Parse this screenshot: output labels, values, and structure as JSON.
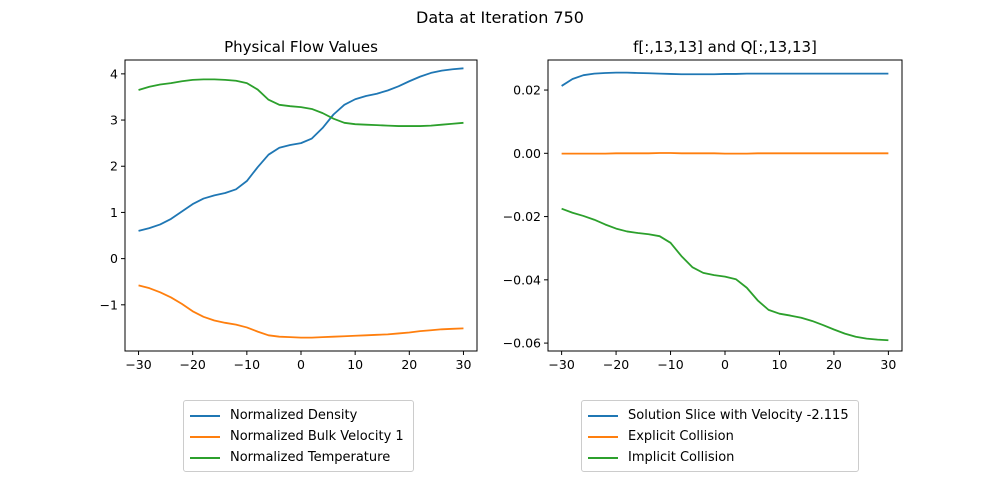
{
  "suptitle": "Data at Iteration 750",
  "colors": {
    "c0": "#1f77b4",
    "c1": "#ff7f0e",
    "c2": "#2ca02c"
  },
  "chart_data": [
    {
      "type": "line",
      "title": "Physical Flow Values",
      "xlabel": "",
      "ylabel": "",
      "xlim": [
        -32.5,
        32.5
      ],
      "ylim": [
        -2.0,
        4.3
      ],
      "xticks": [
        -30,
        -20,
        -10,
        0,
        10,
        20,
        30
      ],
      "yticks": [
        -1,
        0,
        1,
        2,
        3,
        4
      ],
      "ytick_labels": [
        "−1",
        "0",
        "1",
        "2",
        "3",
        "4"
      ],
      "xtick_labels": [
        "−30",
        "−20",
        "−10",
        "0",
        "10",
        "20",
        "30"
      ],
      "x": [
        -30,
        -28,
        -26,
        -24,
        -22,
        -20,
        -18,
        -16,
        -14,
        -12,
        -10,
        -8,
        -6,
        -4,
        -2,
        0,
        2,
        4,
        6,
        8,
        10,
        12,
        14,
        16,
        18,
        20,
        22,
        24,
        26,
        28,
        30
      ],
      "series": [
        {
          "name": "Normalized Density",
          "color": "#1f77b4",
          "values": [
            0.6,
            0.66,
            0.74,
            0.86,
            1.02,
            1.18,
            1.3,
            1.37,
            1.42,
            1.5,
            1.68,
            1.98,
            2.25,
            2.4,
            2.46,
            2.5,
            2.6,
            2.83,
            3.12,
            3.33,
            3.45,
            3.52,
            3.57,
            3.64,
            3.73,
            3.84,
            3.94,
            4.02,
            4.07,
            4.1,
            4.12
          ]
        },
        {
          "name": "Normalized Bulk Velocity 1",
          "color": "#ff7f0e",
          "values": [
            -0.58,
            -0.64,
            -0.73,
            -0.84,
            -0.98,
            -1.14,
            -1.26,
            -1.34,
            -1.39,
            -1.43,
            -1.49,
            -1.58,
            -1.66,
            -1.69,
            -1.7,
            -1.71,
            -1.71,
            -1.7,
            -1.69,
            -1.68,
            -1.67,
            -1.66,
            -1.65,
            -1.64,
            -1.62,
            -1.6,
            -1.57,
            -1.55,
            -1.53,
            -1.52,
            -1.51
          ]
        },
        {
          "name": "Normalized Temperature",
          "color": "#2ca02c",
          "values": [
            3.65,
            3.72,
            3.77,
            3.8,
            3.84,
            3.87,
            3.88,
            3.88,
            3.87,
            3.85,
            3.8,
            3.66,
            3.44,
            3.33,
            3.3,
            3.28,
            3.24,
            3.15,
            3.03,
            2.94,
            2.91,
            2.9,
            2.89,
            2.88,
            2.87,
            2.87,
            2.87,
            2.88,
            2.9,
            2.92,
            2.94
          ]
        }
      ],
      "legend": "below"
    },
    {
      "type": "line",
      "title": "f[:,13,13] and Q[:,13,13]",
      "xlabel": "",
      "ylabel": "",
      "xlim": [
        -32.5,
        32.5
      ],
      "ylim": [
        -0.0625,
        0.0295
      ],
      "xticks": [
        -30,
        -20,
        -10,
        0,
        10,
        20,
        30
      ],
      "yticks": [
        -0.06,
        -0.04,
        -0.02,
        0.0,
        0.02
      ],
      "ytick_labels": [
        "−0.06",
        "−0.04",
        "−0.02",
        "0.00",
        "0.02"
      ],
      "xtick_labels": [
        "−30",
        "−20",
        "−10",
        "0",
        "10",
        "20",
        "30"
      ],
      "x": [
        -30,
        -28,
        -26,
        -24,
        -22,
        -20,
        -18,
        -16,
        -14,
        -12,
        -10,
        -8,
        -6,
        -4,
        -2,
        0,
        2,
        4,
        6,
        8,
        10,
        12,
        14,
        16,
        18,
        20,
        22,
        24,
        26,
        28,
        30
      ],
      "series": [
        {
          "name": "Solution Slice with Velocity -2.115",
          "color": "#1f77b4",
          "values": [
            0.0213,
            0.0235,
            0.0247,
            0.0252,
            0.0254,
            0.0255,
            0.0255,
            0.0254,
            0.0253,
            0.0252,
            0.0251,
            0.025,
            0.025,
            0.025,
            0.025,
            0.0251,
            0.0251,
            0.0252,
            0.0252,
            0.0252,
            0.0252,
            0.0252,
            0.0252,
            0.0252,
            0.0252,
            0.0252,
            0.0252,
            0.0252,
            0.0252,
            0.0252,
            0.0252
          ]
        },
        {
          "name": "Explicit Collision",
          "color": "#ff7f0e",
          "values": [
            -0.0001,
            -0.0001,
            -0.0001,
            -0.0001,
            -0.0001,
            0.0,
            0.0,
            0.0,
            0.0,
            0.0001,
            0.0001,
            0.0,
            0.0,
            0.0,
            0.0,
            -0.0001,
            -0.0001,
            -0.0001,
            0.0,
            0.0,
            0.0,
            0.0,
            0.0,
            0.0,
            0.0,
            0.0,
            0.0,
            0.0,
            0.0,
            0.0,
            0.0
          ]
        },
        {
          "name": "Implicit Collision",
          "color": "#2ca02c",
          "values": [
            -0.0175,
            -0.0188,
            -0.0198,
            -0.021,
            -0.0225,
            -0.0238,
            -0.0247,
            -0.0252,
            -0.0256,
            -0.0262,
            -0.0283,
            -0.0325,
            -0.036,
            -0.0378,
            -0.0385,
            -0.039,
            -0.0398,
            -0.0425,
            -0.0465,
            -0.0495,
            -0.0507,
            -0.0513,
            -0.052,
            -0.053,
            -0.0543,
            -0.0557,
            -0.057,
            -0.058,
            -0.0586,
            -0.0589,
            -0.0591
          ]
        }
      ],
      "legend": "below"
    }
  ]
}
